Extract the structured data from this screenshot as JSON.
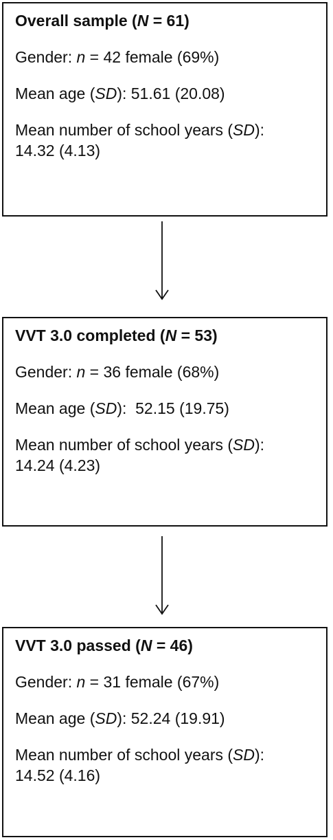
{
  "boxes": [
    {
      "title_prefix": "Overall sample (",
      "title_n_symbol": "N",
      "title_suffix": " = 61)",
      "gender_prefix": "Gender: ",
      "gender_n_symbol": "n",
      "gender_suffix": " = 42 female (69%)",
      "age_prefix": "Mean age (",
      "age_sd_symbol": "SD",
      "age_suffix": "): 51.61 (20.08)",
      "school_prefix": "Mean number of school years (",
      "school_sd_symbol": "SD",
      "school_suffix": "):",
      "school_value": "14.32 (4.13)"
    },
    {
      "title_prefix": "VVT 3.0 completed (",
      "title_n_symbol": "N",
      "title_suffix": " = 53)",
      "gender_prefix": "Gender: ",
      "gender_n_symbol": "n",
      "gender_suffix": " = 36 female (68%)",
      "age_prefix": "Mean age (",
      "age_sd_symbol": "SD",
      "age_suffix": "):  52.15 (19.75)",
      "school_prefix": "Mean number of school years (",
      "school_sd_symbol": "SD",
      "school_suffix": "):",
      "school_value": "14.24 (4.23)"
    },
    {
      "title_prefix": "VVT 3.0 passed (",
      "title_n_symbol": "N",
      "title_suffix": " = 46)",
      "gender_prefix": "Gender: ",
      "gender_n_symbol": "n",
      "gender_suffix": " = 31 female (67%)",
      "age_prefix": "Mean age (",
      "age_sd_symbol": "SD",
      "age_suffix": "): 52.24 (19.91)",
      "school_prefix": "Mean number of school years (",
      "school_sd_symbol": "SD",
      "school_suffix": "):",
      "school_value": "14.52 (4.16)"
    }
  ],
  "colors": {
    "line": "#111111",
    "background": "#ffffff"
  }
}
